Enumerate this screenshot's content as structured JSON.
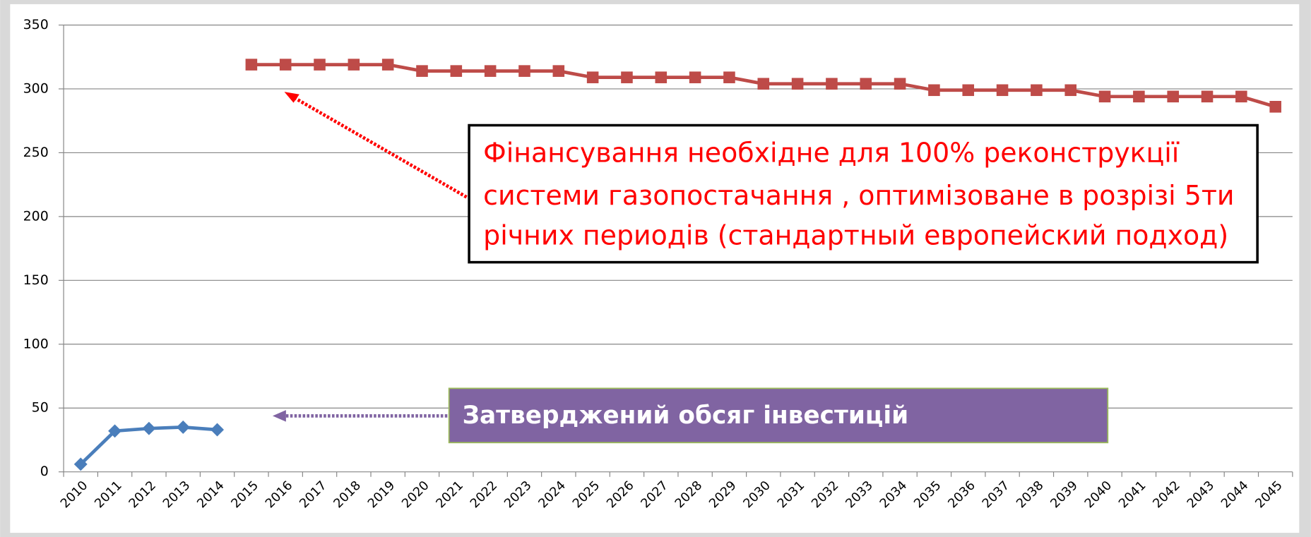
{
  "chart_data": {
    "type": "line",
    "categories": [
      "2010",
      "2011",
      "2012",
      "2013",
      "2014",
      "2015",
      "2016",
      "2017",
      "2018",
      "2019",
      "2020",
      "2021",
      "2022",
      "2023",
      "2024",
      "2025",
      "2026",
      "2027",
      "2028",
      "2029",
      "2030",
      "2031",
      "2032",
      "2033",
      "2034",
      "2035",
      "2036",
      "2037",
      "2038",
      "2039",
      "2040",
      "2041",
      "2042",
      "2043",
      "2044",
      "2045"
    ],
    "series": [
      {
        "color": "#4a7ebb",
        "marker": "diamond",
        "values": [
          6,
          32,
          34,
          35,
          33,
          null,
          null,
          null,
          null,
          null,
          null,
          null,
          null,
          null,
          null,
          null,
          null,
          null,
          null,
          null,
          null,
          null,
          null,
          null,
          null,
          null,
          null,
          null,
          null,
          null,
          null,
          null,
          null,
          null,
          null,
          null
        ]
      },
      {
        "color": "#be4b48",
        "marker": "square",
        "values": [
          null,
          null,
          null,
          null,
          null,
          319,
          319,
          319,
          319,
          319,
          314,
          314,
          314,
          314,
          314,
          309,
          309,
          309,
          309,
          309,
          304,
          304,
          304,
          304,
          304,
          299,
          299,
          299,
          299,
          299,
          294,
          294,
          294,
          294,
          294,
          286
        ]
      }
    ],
    "ylim": [
      0,
      350
    ],
    "yticks": [
      0,
      50,
      100,
      150,
      200,
      250,
      300,
      350
    ],
    "grid": true,
    "annotations": [
      {
        "lines": [
          "Фінансування необхідне для 100% реконструкції",
          "системи газопостачання , оптимізоване в розрізі 5ти",
          "річних периодів (стандартный европейский подход)"
        ]
      },
      {
        "text": "Затверджений обсяг інвестицій"
      }
    ]
  }
}
